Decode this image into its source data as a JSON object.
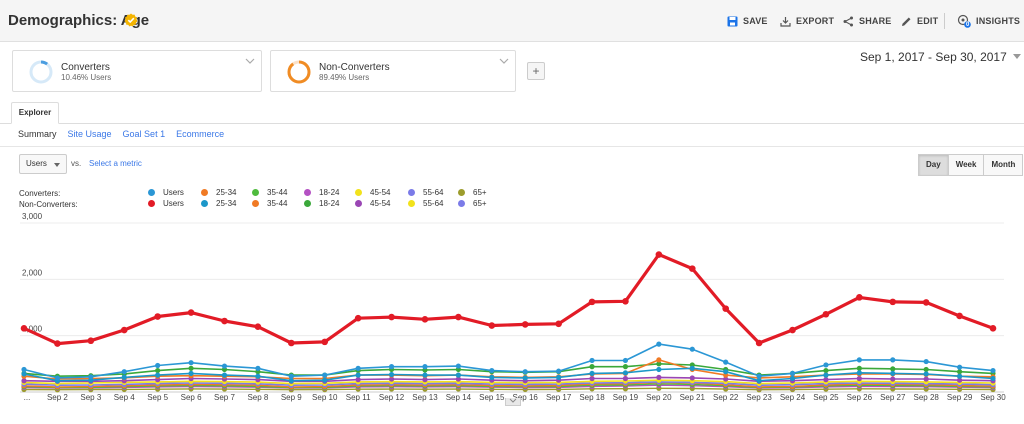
{
  "header": {
    "title": "Demographics: Age",
    "save_label": "SAVE",
    "export_label": "EXPORT",
    "share_label": "SHARE",
    "edit_label": "EDIT",
    "insights_label": "INSIGHTS",
    "insights_badge": "0"
  },
  "segments": [
    {
      "name": "Converters",
      "value": "10.46% Users",
      "color": "#4a9de0",
      "fraction": 0.1046
    },
    {
      "name": "Non-Converters",
      "value": "89.49% Users",
      "color": "#f08c24",
      "fraction": 0.8949
    }
  ],
  "add_segment": "+",
  "date_range": "Sep 1, 2017 - Sep 30, 2017",
  "tabs": {
    "explorer": "Explorer"
  },
  "subtabs": [
    "Summary",
    "Site Usage",
    "Goal Set 1",
    "Ecommerce"
  ],
  "metric": {
    "selected": "Users",
    "vs": "vs.",
    "select_metric": "Select a metric"
  },
  "periods": [
    "Day",
    "Week",
    "Month"
  ],
  "legend": {
    "converters_label": "Converters:",
    "non_converters_label": "Non-Converters:",
    "converters_items": [
      {
        "label": "Users",
        "color": "#2b97d5"
      },
      {
        "label": "25-34",
        "color": "#f07a24"
      },
      {
        "label": "35-44",
        "color": "#4fbb3e"
      },
      {
        "label": "18-24",
        "color": "#b451c3"
      },
      {
        "label": "45-54",
        "color": "#f2e21b"
      },
      {
        "label": "55-64",
        "color": "#7b7be8"
      },
      {
        "label": "65+",
        "color": "#9c9c2c"
      }
    ],
    "non_converters_items": [
      {
        "label": "Users",
        "color": "#e21b26"
      },
      {
        "label": "25-34",
        "color": "#1c97c9"
      },
      {
        "label": "35-44",
        "color": "#f07a24"
      },
      {
        "label": "18-24",
        "color": "#3aa83a"
      },
      {
        "label": "45-54",
        "color": "#9a46b4"
      },
      {
        "label": "55-64",
        "color": "#f2e21b"
      },
      {
        "label": "65+",
        "color": "#7b7be8"
      }
    ]
  },
  "chart_data": {
    "type": "line",
    "x": [
      "...",
      "Sep 2",
      "Sep 3",
      "Sep 4",
      "Sep 5",
      "Sep 6",
      "Sep 7",
      "Sep 8",
      "Sep 9",
      "Sep 10",
      "Sep 11",
      "Sep 12",
      "Sep 13",
      "Sep 14",
      "Sep 15",
      "Sep 16",
      "Sep 17",
      "Sep 18",
      "Sep 19",
      "Sep 20",
      "Sep 21",
      "Sep 22",
      "Sep 23",
      "Sep 24",
      "Sep 25",
      "Sep 26",
      "Sep 27",
      "Sep 28",
      "Sep 29",
      "Sep 30"
    ],
    "y_ticks": [
      "3,000",
      "2,000",
      "1,000"
    ],
    "ylim": [
      0,
      3000
    ],
    "grid": true,
    "series": [
      {
        "name": "Non-Converters: Users",
        "color": "#e21b26",
        "width": 3.2,
        "values": [
          1130,
          860,
          910,
          1100,
          1340,
          1410,
          1260,
          1160,
          870,
          890,
          1310,
          1330,
          1290,
          1330,
          1180,
          1200,
          1210,
          1600,
          1610,
          2440,
          2190,
          1480,
          870,
          1100,
          1380,
          1680,
          1600,
          1590,
          1350,
          1130
        ]
      },
      {
        "name": "Converters: Users",
        "color": "#2b97d5",
        "width": 1.6,
        "values": [
          400,
          250,
          270,
          360,
          470,
          520,
          460,
          420,
          280,
          300,
          420,
          450,
          450,
          460,
          380,
          360,
          370,
          560,
          560,
          850,
          760,
          530,
          280,
          330,
          480,
          570,
          570,
          540,
          440,
          380
        ]
      },
      {
        "name": "Non-Converters: 25-34",
        "color": "#1c97c9",
        "width": 1.6,
        "values": [
          320,
          200,
          210,
          260,
          300,
          330,
          300,
          280,
          200,
          210,
          300,
          310,
          300,
          300,
          260,
          250,
          260,
          330,
          340,
          400,
          420,
          360,
          200,
          240,
          300,
          340,
          330,
          320,
          280,
          240
        ]
      },
      {
        "name": "Non-Converters: 35-44",
        "color": "#f07a24",
        "width": 1.6,
        "values": [
          280,
          230,
          240,
          250,
          280,
          290,
          280,
          270,
          240,
          240,
          300,
          300,
          290,
          300,
          270,
          260,
          270,
          320,
          330,
          570,
          400,
          300,
          250,
          270,
          300,
          320,
          320,
          310,
          280,
          270
        ]
      },
      {
        "name": "Non-Converters: 18-24",
        "color": "#3aa83a",
        "width": 1.6,
        "values": [
          330,
          280,
          290,
          320,
          380,
          420,
          400,
          360,
          300,
          300,
          380,
          400,
          390,
          400,
          360,
          350,
          360,
          450,
          450,
          500,
          480,
          400,
          300,
          330,
          380,
          420,
          410,
          400,
          360,
          330
        ]
      },
      {
        "name": "Non-Converters: 45-54",
        "color": "#9a46b4",
        "width": 1.6,
        "values": [
          200,
          190,
          190,
          200,
          220,
          240,
          230,
          220,
          190,
          190,
          220,
          230,
          220,
          230,
          210,
          200,
          210,
          240,
          240,
          260,
          250,
          230,
          190,
          200,
          220,
          240,
          230,
          230,
          210,
          200
        ]
      },
      {
        "name": "Non-Converters: 55-64",
        "color": "#f2e21b",
        "width": 1.6,
        "values": [
          170,
          150,
          160,
          170,
          180,
          190,
          185,
          175,
          150,
          155,
          180,
          185,
          180,
          185,
          170,
          165,
          170,
          190,
          195,
          210,
          200,
          185,
          150,
          160,
          180,
          190,
          185,
          180,
          170,
          160
        ]
      },
      {
        "name": "Non-Converters: 65+",
        "color": "#7b7be8",
        "width": 1.6,
        "values": [
          140,
          120,
          125,
          135,
          150,
          160,
          155,
          145,
          120,
          125,
          150,
          155,
          150,
          155,
          140,
          135,
          140,
          160,
          165,
          180,
          170,
          155,
          120,
          130,
          150,
          160,
          155,
          150,
          140,
          130
        ]
      },
      {
        "name": "Converters: 25-34",
        "color": "#f07a24",
        "width": 1.4,
        "values": [
          110,
          90,
          95,
          110,
          125,
          135,
          130,
          120,
          90,
          95,
          125,
          130,
          125,
          130,
          115,
          110,
          115,
          140,
          145,
          170,
          160,
          130,
          90,
          100,
          125,
          140,
          135,
          130,
          115,
          105
        ]
      },
      {
        "name": "Converters: 35-44",
        "color": "#4fbb3e",
        "width": 1.4,
        "values": [
          95,
          80,
          82,
          95,
          108,
          115,
          110,
          100,
          80,
          82,
          108,
          112,
          108,
          112,
          100,
          95,
          98,
          120,
          125,
          145,
          135,
          112,
          80,
          88,
          108,
          120,
          115,
          112,
          100,
          92
        ]
      },
      {
        "name": "Converters: 18-24",
        "color": "#b451c3",
        "width": 1.4,
        "values": [
          80,
          70,
          72,
          80,
          90,
          95,
          92,
          85,
          70,
          72,
          90,
          94,
          90,
          94,
          85,
          80,
          82,
          100,
          105,
          120,
          112,
          94,
          70,
          75,
          90,
          100,
          96,
          94,
          85,
          78
        ]
      },
      {
        "name": "Converters: 65+",
        "color": "#9c9c2c",
        "width": 1.4,
        "values": [
          45,
          40,
          42,
          45,
          50,
          55,
          52,
          48,
          40,
          42,
          50,
          52,
          50,
          52,
          48,
          45,
          46,
          56,
          58,
          66,
          62,
          52,
          40,
          43,
          50,
          56,
          54,
          52,
          48,
          44
        ]
      }
    ]
  }
}
